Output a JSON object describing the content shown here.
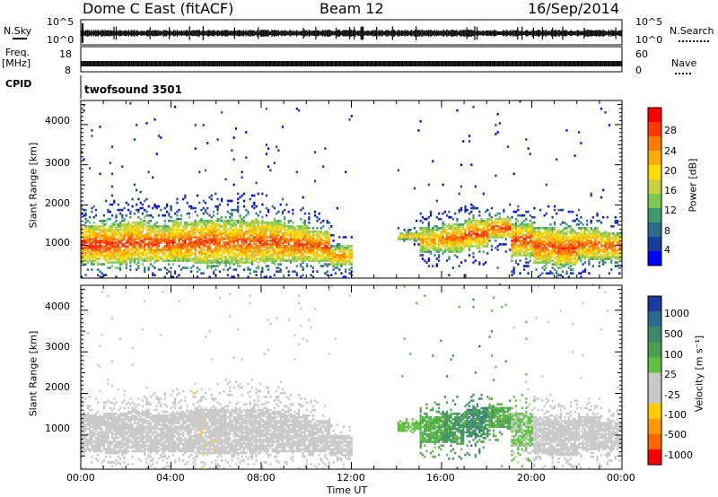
{
  "header": {
    "station": "Dome C East (fitACF)",
    "beam": "Beam 12",
    "date": "16/Sep/2014"
  },
  "strip": {
    "nsky_label": "N.Sky",
    "nsky_ticks": [
      "10^5",
      "10^0"
    ],
    "nsearch_label": "N.Search",
    "nsearch_ticks": [
      "10^5",
      "10^0"
    ],
    "freq_label_line1": "Freq.",
    "freq_label_line2": "[MHz]",
    "freq_ticks": [
      "18",
      "8"
    ],
    "nave_label": "Nave",
    "nave_ticks": [
      "60",
      "0"
    ],
    "cpid_label": "CPID",
    "cpid_value": "twofsound 3501"
  },
  "power_panel": {
    "ylabel": "Slant Range [km]",
    "yticks": [
      "4000",
      "3000",
      "2000",
      "1000"
    ],
    "colorbar_label": "Power [dB]",
    "colorbar_ticks": [
      "28",
      "24",
      "20",
      "16",
      "12",
      "8",
      "4"
    ],
    "colorbar_colors": [
      "#ff0000",
      "#ff3a00",
      "#ff7a00",
      "#ffaa00",
      "#ffdd00",
      "#c8d040",
      "#7ac850",
      "#3a9a6a",
      "#2a6a8a",
      "#1a3a9a",
      "#0000ff"
    ]
  },
  "velocity_panel": {
    "ylabel": "Slant Range [km]",
    "yticks": [
      "4000",
      "3000",
      "2000",
      "1000"
    ],
    "colorbar_label": "Velocity [m s⁻¹]",
    "colorbar_ticks": [
      "1000",
      "500",
      "100",
      "25",
      "-25",
      "-100",
      "-500",
      "-1000"
    ],
    "colorbar_colors": [
      "#1a3aa0",
      "#2a6a90",
      "#3a8a6a",
      "#4aa050",
      "#60c040",
      "#c8c8c8",
      "#c8c8c8",
      "#ffcc00",
      "#ff9900",
      "#ff6600",
      "#ff0000"
    ]
  },
  "xaxis": {
    "label": "Time UT",
    "ticks": [
      "00:00",
      "04:00",
      "08:00",
      "12:00",
      "16:00",
      "20:00",
      "00:00"
    ]
  },
  "chart_data": [
    {
      "type": "heatmap",
      "title": "Power [dB]",
      "xlabel": "Time UT",
      "ylabel": "Slant Range [km]",
      "xlim": [
        0,
        24
      ],
      "ylim": [
        180,
        4600
      ],
      "clim": [
        0,
        32
      ],
      "x": [
        0,
        1,
        2,
        3,
        4,
        5,
        6,
        7,
        8,
        9,
        10,
        11,
        12,
        13,
        14,
        15,
        16,
        17,
        18,
        19,
        20,
        21,
        22,
        23
      ],
      "scatter_band_center_km": [
        1000,
        1000,
        1050,
        1000,
        1050,
        1050,
        1050,
        1050,
        1050,
        1000,
        950,
        700,
        0,
        0,
        1200,
        1100,
        1150,
        1250,
        1400,
        1100,
        950,
        900,
        1000,
        950
      ],
      "scatter_band_halfwidth_km": [
        450,
        500,
        500,
        450,
        500,
        550,
        550,
        550,
        500,
        450,
        400,
        250,
        0,
        0,
        100,
        300,
        350,
        350,
        250,
        400,
        450,
        450,
        400,
        350
      ],
      "peak_power_db": [
        30,
        28,
        28,
        28,
        28,
        28,
        26,
        28,
        28,
        28,
        28,
        24,
        0,
        0,
        22,
        24,
        26,
        28,
        28,
        28,
        28,
        28,
        26,
        26
      ]
    },
    {
      "type": "heatmap",
      "title": "Velocity [m s⁻¹]",
      "xlabel": "Time UT",
      "ylabel": "Slant Range [km]",
      "xlim": [
        0,
        24
      ],
      "ylim": [
        180,
        4600
      ],
      "clim": [
        -1000,
        1000
      ],
      "x": [
        0,
        1,
        2,
        3,
        4,
        5,
        6,
        7,
        8,
        9,
        10,
        11,
        12,
        13,
        14,
        15,
        16,
        17,
        18,
        19,
        20,
        21,
        22,
        23
      ],
      "scatter_band_center_km": [
        1000,
        1000,
        1050,
        1000,
        1050,
        1050,
        1050,
        1050,
        1050,
        1000,
        950,
        700,
        0,
        0,
        1200,
        1100,
        1150,
        1250,
        1400,
        1100,
        950,
        900,
        1000,
        950
      ],
      "scatter_band_halfwidth_km": [
        450,
        500,
        500,
        450,
        500,
        550,
        550,
        550,
        500,
        450,
        400,
        250,
        0,
        0,
        100,
        300,
        350,
        350,
        250,
        400,
        450,
        450,
        400,
        350
      ],
      "typical_velocity_ms": [
        -80,
        -120,
        -150,
        -150,
        -150,
        -200,
        -150,
        -150,
        -120,
        -100,
        -80,
        -60,
        0,
        0,
        200,
        300,
        400,
        500,
        300,
        100,
        60,
        40,
        -100,
        -150
      ]
    }
  ]
}
